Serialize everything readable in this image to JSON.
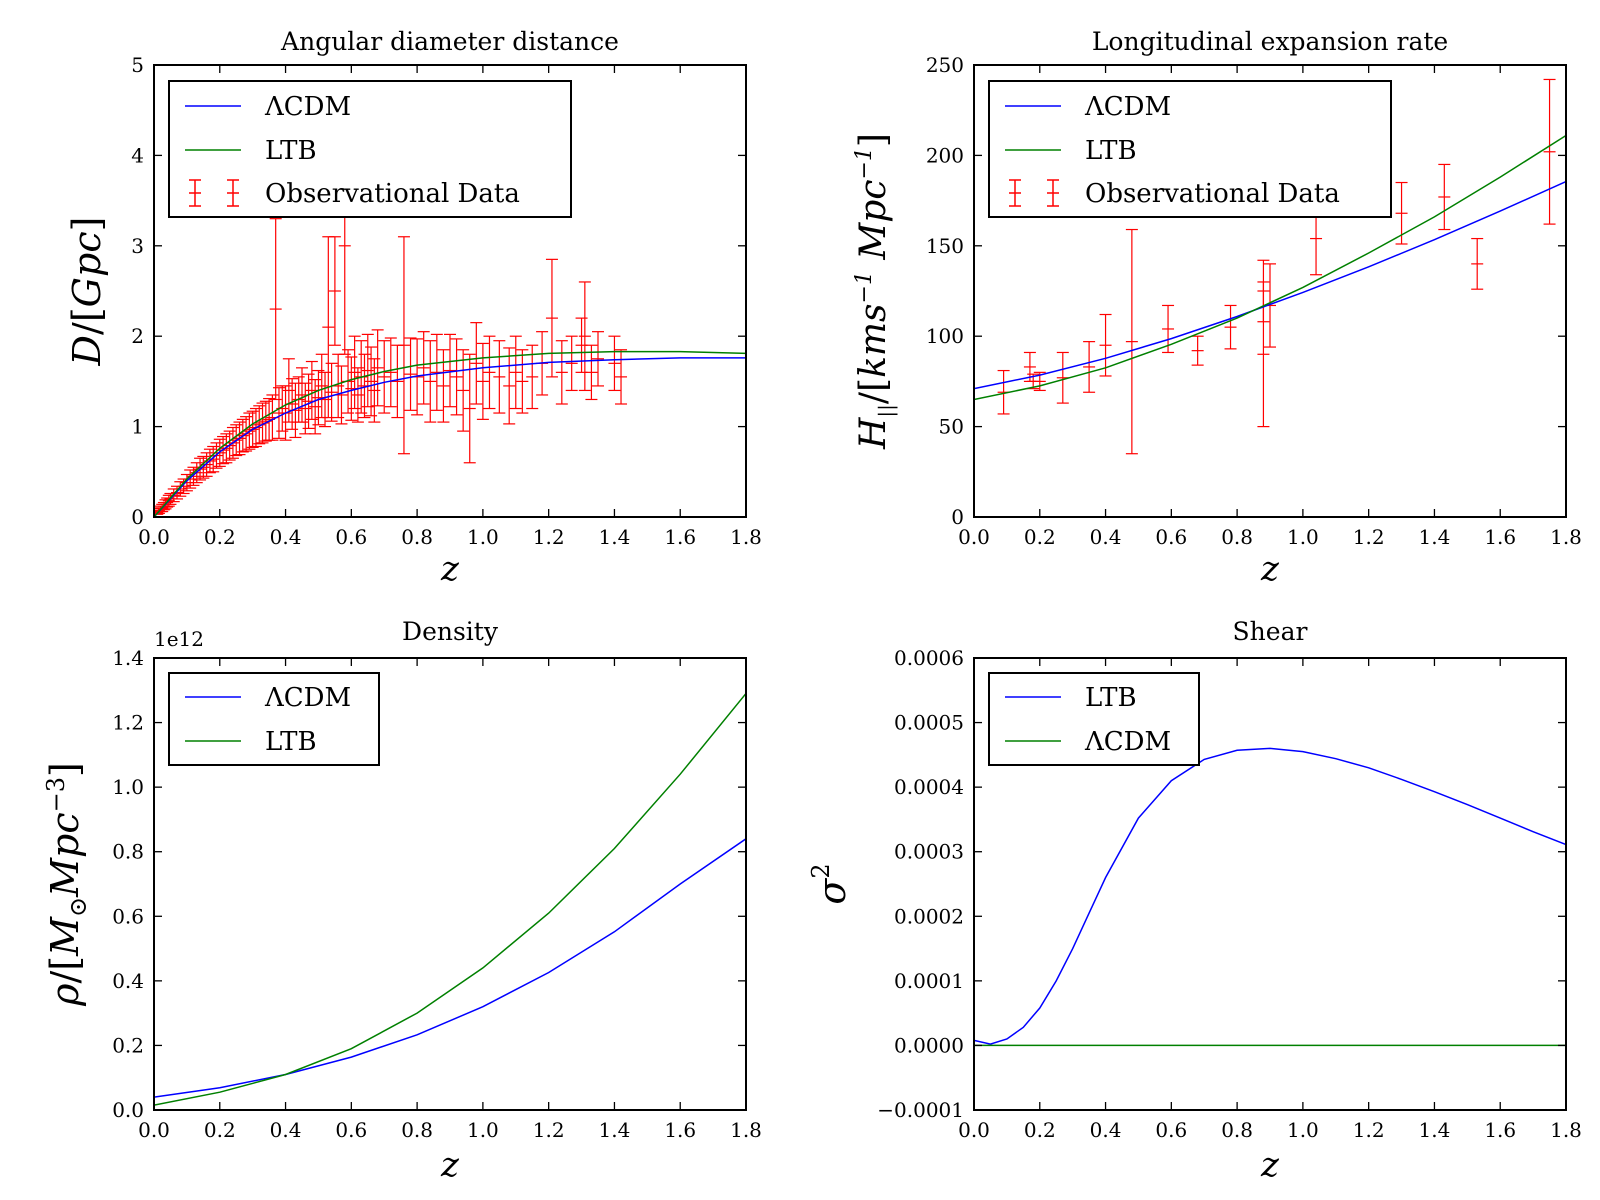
{
  "chart_data": [
    {
      "id": "p1",
      "type": "line",
      "title": "Angular diameter distance",
      "xlabel": "z",
      "ylabel": "D/[Gpc]",
      "xlim": [
        0,
        1.8
      ],
      "ylim": [
        0,
        5
      ],
      "xticks": [
        "0.0",
        "0.2",
        "0.4",
        "0.6",
        "0.8",
        "1.0",
        "1.2",
        "1.4",
        "1.6",
        "1.8"
      ],
      "yticks": [
        "0",
        "1",
        "2",
        "3",
        "4",
        "5"
      ],
      "legend": {
        "position": "top-left",
        "entries": [
          "ΛCDM",
          "LTB",
          "Observational Data"
        ]
      },
      "colors": {
        "lcdm": "#0000ff",
        "ltb": "#008000",
        "data": "#ff0000"
      },
      "series": [
        {
          "name": "ΛCDM",
          "color": "#0000ff",
          "x": [
            0,
            0.05,
            0.1,
            0.2,
            0.3,
            0.4,
            0.5,
            0.6,
            0.7,
            0.8,
            1.0,
            1.2,
            1.4,
            1.6,
            1.8
          ],
          "y": [
            0,
            0.2,
            0.4,
            0.72,
            0.97,
            1.15,
            1.3,
            1.4,
            1.49,
            1.56,
            1.65,
            1.71,
            1.74,
            1.76,
            1.76
          ]
        },
        {
          "name": "LTB",
          "color": "#008000",
          "x": [
            0,
            0.05,
            0.1,
            0.2,
            0.3,
            0.4,
            0.5,
            0.6,
            0.7,
            0.8,
            1.0,
            1.2,
            1.4,
            1.6,
            1.8
          ],
          "y": [
            0,
            0.21,
            0.42,
            0.76,
            1.03,
            1.24,
            1.4,
            1.52,
            1.61,
            1.68,
            1.76,
            1.81,
            1.83,
            1.83,
            1.81
          ]
        }
      ],
      "errorbars": {
        "name": "Observational Data",
        "color": "#ff0000",
        "points": [
          [
            0.01,
            0.05,
            0.02
          ],
          [
            0.015,
            0.07,
            0.03
          ],
          [
            0.02,
            0.09,
            0.03
          ],
          [
            0.025,
            0.1,
            0.04
          ],
          [
            0.03,
            0.12,
            0.04
          ],
          [
            0.035,
            0.14,
            0.05
          ],
          [
            0.04,
            0.16,
            0.05
          ],
          [
            0.045,
            0.18,
            0.06
          ],
          [
            0.05,
            0.2,
            0.06
          ],
          [
            0.06,
            0.24,
            0.07
          ],
          [
            0.07,
            0.27,
            0.07
          ],
          [
            0.08,
            0.31,
            0.08
          ],
          [
            0.09,
            0.34,
            0.08
          ],
          [
            0.1,
            0.38,
            0.09
          ],
          [
            0.11,
            0.42,
            0.1
          ],
          [
            0.12,
            0.45,
            0.1
          ],
          [
            0.13,
            0.49,
            0.11
          ],
          [
            0.14,
            0.53,
            0.12
          ],
          [
            0.15,
            0.55,
            0.12
          ],
          [
            0.16,
            0.58,
            0.13
          ],
          [
            0.17,
            0.62,
            0.13
          ],
          [
            0.18,
            0.64,
            0.14
          ],
          [
            0.19,
            0.68,
            0.14
          ],
          [
            0.2,
            0.71,
            0.15
          ],
          [
            0.21,
            0.74,
            0.15
          ],
          [
            0.22,
            0.76,
            0.16
          ],
          [
            0.23,
            0.79,
            0.16
          ],
          [
            0.24,
            0.82,
            0.17
          ],
          [
            0.25,
            0.85,
            0.17
          ],
          [
            0.26,
            0.87,
            0.18
          ],
          [
            0.27,
            0.9,
            0.18
          ],
          [
            0.28,
            0.92,
            0.19
          ],
          [
            0.29,
            0.95,
            0.2
          ],
          [
            0.3,
            0.97,
            0.2
          ],
          [
            0.31,
            0.99,
            0.21
          ],
          [
            0.32,
            1.02,
            0.21
          ],
          [
            0.33,
            1.04,
            0.22
          ],
          [
            0.34,
            1.06,
            0.22
          ],
          [
            0.35,
            1.08,
            0.23
          ],
          [
            0.36,
            1.1,
            0.25
          ],
          [
            0.37,
            2.3,
            1.0
          ],
          [
            0.38,
            1.15,
            0.28
          ],
          [
            0.39,
            1.2,
            0.25
          ],
          [
            0.4,
            1.15,
            0.3
          ],
          [
            0.41,
            1.4,
            0.35
          ],
          [
            0.42,
            1.25,
            0.28
          ],
          [
            0.43,
            1.18,
            0.3
          ],
          [
            0.44,
            1.3,
            0.25
          ],
          [
            0.45,
            1.35,
            0.3
          ],
          [
            0.46,
            1.2,
            0.28
          ],
          [
            0.47,
            1.28,
            0.3
          ],
          [
            0.48,
            1.4,
            0.32
          ],
          [
            0.49,
            1.22,
            0.3
          ],
          [
            0.5,
            1.32,
            0.3
          ],
          [
            0.51,
            1.45,
            0.35
          ],
          [
            0.52,
            1.3,
            0.3
          ],
          [
            0.53,
            2.1,
            1.0
          ],
          [
            0.54,
            1.38,
            0.32
          ],
          [
            0.55,
            2.5,
            0.6
          ],
          [
            0.56,
            1.45,
            0.35
          ],
          [
            0.57,
            1.35,
            0.32
          ],
          [
            0.58,
            3.0,
            1.2
          ],
          [
            0.59,
            1.5,
            0.35
          ],
          [
            0.6,
            1.42,
            0.35
          ],
          [
            0.61,
            1.6,
            0.4
          ],
          [
            0.62,
            1.35,
            0.3
          ],
          [
            0.63,
            1.55,
            0.4
          ],
          [
            0.64,
            1.45,
            0.35
          ],
          [
            0.65,
            1.62,
            0.4
          ],
          [
            0.66,
            1.5,
            0.38
          ],
          [
            0.67,
            1.4,
            0.35
          ],
          [
            0.68,
            1.65,
            0.42
          ],
          [
            0.7,
            1.55,
            0.4
          ],
          [
            0.72,
            1.6,
            0.38
          ],
          [
            0.74,
            1.5,
            0.4
          ],
          [
            0.76,
            1.9,
            1.2
          ],
          [
            0.78,
            1.58,
            0.4
          ],
          [
            0.8,
            1.55,
            0.42
          ],
          [
            0.82,
            1.65,
            0.4
          ],
          [
            0.84,
            1.5,
            0.45
          ],
          [
            0.86,
            1.6,
            0.42
          ],
          [
            0.88,
            1.45,
            0.4
          ],
          [
            0.9,
            1.62,
            0.4
          ],
          [
            0.92,
            1.55,
            0.42
          ],
          [
            0.94,
            1.4,
            0.45
          ],
          [
            0.96,
            1.2,
            0.6
          ],
          [
            0.98,
            1.7,
            0.45
          ],
          [
            1.0,
            1.5,
            0.42
          ],
          [
            1.02,
            1.6,
            0.4
          ],
          [
            1.05,
            1.55,
            0.4
          ],
          [
            1.08,
            1.45,
            0.42
          ],
          [
            1.1,
            1.6,
            0.4
          ],
          [
            1.12,
            1.5,
            0.35
          ],
          [
            1.15,
            1.55,
            0.35
          ],
          [
            1.18,
            1.7,
            0.35
          ],
          [
            1.21,
            2.2,
            0.65
          ],
          [
            1.24,
            1.6,
            0.35
          ],
          [
            1.27,
            1.7,
            0.3
          ],
          [
            1.3,
            1.9,
            0.3
          ],
          [
            1.31,
            2.0,
            0.6
          ],
          [
            1.33,
            1.6,
            0.3
          ],
          [
            1.35,
            1.75,
            0.3
          ],
          [
            1.4,
            1.7,
            0.3
          ],
          [
            1.42,
            1.55,
            0.3
          ]
        ]
      }
    },
    {
      "id": "p2",
      "type": "line",
      "title": "Longitudinal expansion rate",
      "xlabel": "z",
      "ylabel": "H_∥/[kms^-1 Mpc^-1]",
      "xlim": [
        0,
        1.8
      ],
      "ylim": [
        0,
        250
      ],
      "xticks": [
        "0.0",
        "0.2",
        "0.4",
        "0.6",
        "0.8",
        "1.0",
        "1.2",
        "1.4",
        "1.6",
        "1.8"
      ],
      "yticks": [
        "0",
        "50",
        "100",
        "150",
        "200",
        "250"
      ],
      "legend": {
        "position": "top-left",
        "entries": [
          "ΛCDM",
          "LTB",
          "Observational Data"
        ]
      },
      "colors": {
        "lcdm": "#0000ff",
        "ltb": "#008000",
        "data": "#ff0000"
      },
      "series": [
        {
          "name": "ΛCDM",
          "color": "#0000ff",
          "x": [
            0,
            0.2,
            0.4,
            0.6,
            0.8,
            1.0,
            1.2,
            1.4,
            1.6,
            1.8
          ],
          "y": [
            71,
            78.5,
            87.8,
            98.7,
            110.9,
            124.2,
            138.4,
            153.4,
            169.2,
            185.5
          ]
        },
        {
          "name": "LTB",
          "color": "#008000",
          "x": [
            0,
            0.2,
            0.4,
            0.6,
            0.8,
            1.0,
            1.2,
            1.4,
            1.6,
            1.8
          ],
          "y": [
            65,
            72.5,
            82.5,
            95.5,
            110,
            127,
            146,
            166,
            188,
            211
          ]
        }
      ],
      "errorbars": {
        "name": "Observational Data",
        "color": "#ff0000",
        "points": [
          [
            0.09,
            69,
            12
          ],
          [
            0.17,
            83,
            8
          ],
          [
            0.18,
            75,
            4
          ],
          [
            0.2,
            75,
            5
          ],
          [
            0.27,
            77,
            14
          ],
          [
            0.35,
            83,
            14
          ],
          [
            0.4,
            95,
            17
          ],
          [
            0.48,
            97,
            62
          ],
          [
            0.59,
            104,
            13
          ],
          [
            0.68,
            92,
            8
          ],
          [
            0.78,
            105,
            12
          ],
          [
            0.88,
            125,
            17
          ],
          [
            0.88,
            90,
            40
          ],
          [
            0.9,
            117,
            23
          ],
          [
            1.04,
            154,
            20
          ],
          [
            1.3,
            168,
            17
          ],
          [
            1.43,
            177,
            18
          ],
          [
            1.53,
            140,
            14
          ],
          [
            1.75,
            202,
            40
          ]
        ]
      }
    },
    {
      "id": "p3",
      "type": "line",
      "title": "Density",
      "xlabel": "z",
      "ylabel": "ρ/[M⊙ Mpc^-3]",
      "offset_label": "1e12",
      "xlim": [
        0,
        1.8
      ],
      "ylim": [
        0,
        1.4
      ],
      "xticks": [
        "0.0",
        "0.2",
        "0.4",
        "0.6",
        "0.8",
        "1.0",
        "1.2",
        "1.4",
        "1.6",
        "1.8"
      ],
      "yticks": [
        "0.0",
        "0.2",
        "0.4",
        "0.6",
        "0.8",
        "1.0",
        "1.2",
        "1.4"
      ],
      "legend": {
        "position": "top-left",
        "entries": [
          "ΛCDM",
          "LTB"
        ]
      },
      "colors": {
        "lcdm": "#0000ff",
        "ltb": "#008000"
      },
      "series": [
        {
          "name": "ΛCDM",
          "color": "#0000ff",
          "x": [
            0,
            0.2,
            0.4,
            0.6,
            0.8,
            1.0,
            1.2,
            1.4,
            1.6,
            1.8
          ],
          "y": [
            0.04,
            0.069,
            0.11,
            0.164,
            0.233,
            0.32,
            0.426,
            0.552,
            0.7,
            0.84
          ]
        },
        {
          "name": "LTB",
          "color": "#008000",
          "x": [
            0,
            0.2,
            0.4,
            0.6,
            0.8,
            1.0,
            1.2,
            1.4,
            1.6,
            1.8
          ],
          "y": [
            0.015,
            0.055,
            0.11,
            0.19,
            0.3,
            0.44,
            0.61,
            0.81,
            1.04,
            1.29
          ]
        }
      ]
    },
    {
      "id": "p4",
      "type": "line",
      "title": "Shear",
      "xlabel": "z",
      "ylabel": "σ^2",
      "xlim": [
        0,
        1.8
      ],
      "ylim": [
        -0.0001,
        0.0006
      ],
      "xticks": [
        "0.0",
        "0.2",
        "0.4",
        "0.6",
        "0.8",
        "1.0",
        "1.2",
        "1.4",
        "1.6",
        "1.8"
      ],
      "yticks": [
        "−0.0001",
        "0.0000",
        "0.0001",
        "0.0002",
        "0.0003",
        "0.0004",
        "0.0005",
        "0.0006"
      ],
      "legend": {
        "position": "top-left",
        "entries": [
          "LTB",
          "ΛCDM"
        ]
      },
      "colors": {
        "ltb": "#0000ff",
        "lcdm": "#008000"
      },
      "series": [
        {
          "name": "LTB",
          "color": "#0000ff",
          "x": [
            0,
            0.05,
            0.1,
            0.15,
            0.2,
            0.25,
            0.3,
            0.35,
            0.4,
            0.5,
            0.6,
            0.7,
            0.8,
            0.9,
            1.0,
            1.1,
            1.2,
            1.3,
            1.4,
            1.5,
            1.6,
            1.7,
            1.8
          ],
          "y": [
            8e-06,
            2e-06,
            1e-05,
            2.8e-05,
            5.8e-05,
            0.0001,
            0.00015,
            0.000205,
            0.00026,
            0.000352,
            0.00041,
            0.000443,
            0.000457,
            0.00046,
            0.000455,
            0.000444,
            0.00043,
            0.000412,
            0.000393,
            0.000373,
            0.000352,
            0.000331,
            0.000311
          ]
        },
        {
          "name": "ΛCDM",
          "color": "#008000",
          "x": [
            0,
            1.8
          ],
          "y": [
            0,
            0
          ]
        }
      ]
    }
  ]
}
